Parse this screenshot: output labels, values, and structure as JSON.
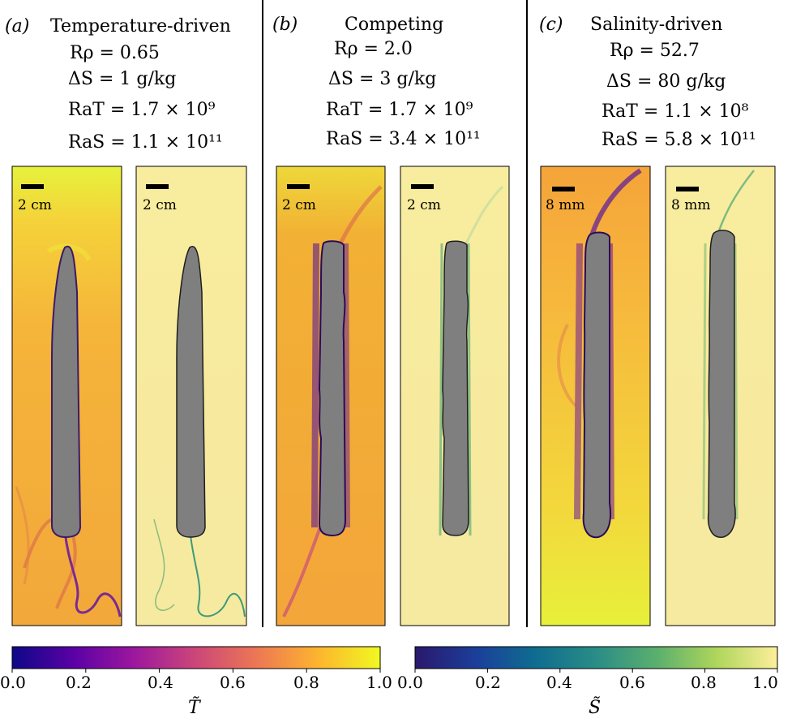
{
  "figure": {
    "panels": [
      {
        "tag": "(a)",
        "title": "Temperature-driven",
        "r_rho": "Rρ = 0.65",
        "delta_s": "ΔS = 1 g/kg",
        "ra_t": "RaT = 1.7 × 10⁹",
        "ra_s": "RaS = 1.1 × 10¹¹",
        "scale_left": "2 cm",
        "scale_right": "2 cm"
      },
      {
        "tag": "(b)",
        "title": "Competing",
        "r_rho": "Rρ = 2.0",
        "delta_s": "ΔS = 3 g/kg",
        "ra_t": "RaT = 1.7 × 10⁹",
        "ra_s": "RaS = 3.4 × 10¹¹",
        "scale_left": "2 cm",
        "scale_right": "2 cm"
      },
      {
        "tag": "(c)",
        "title": "Salinity-driven",
        "r_rho": "Rρ = 52.7",
        "delta_s": "ΔS = 80 g/kg",
        "ra_t": "RaT = 1.1 × 10⁸",
        "ra_s": "RaS = 5.8 × 10¹¹",
        "scale_left": "8 mm",
        "scale_right": "8 mm"
      }
    ],
    "colorbars": [
      {
        "label": "T̃",
        "ticks": [
          "0.0",
          "0.2",
          "0.4",
          "0.6",
          "0.8",
          "1.0"
        ],
        "colormap": "plasma",
        "colors": [
          "#0d0887",
          "#5c01a6",
          "#9c179e",
          "#cc4778",
          "#ed7953",
          "#fdb42f",
          "#f0f921"
        ]
      },
      {
        "label": "S̃",
        "ticks": [
          "0.0",
          "0.2",
          "0.4",
          "0.6",
          "0.8",
          "1.0"
        ],
        "colormap": "haline",
        "colors": [
          "#2a186c",
          "#1b3f9a",
          "#0f6c90",
          "#2a8d86",
          "#5cb06d",
          "#aed55c",
          "#fdef9a"
        ]
      }
    ],
    "colors": {
      "ice": "#7f7f7f",
      "warm_background": "#f3b236",
      "fresh_background": "#f7eba4"
    }
  }
}
